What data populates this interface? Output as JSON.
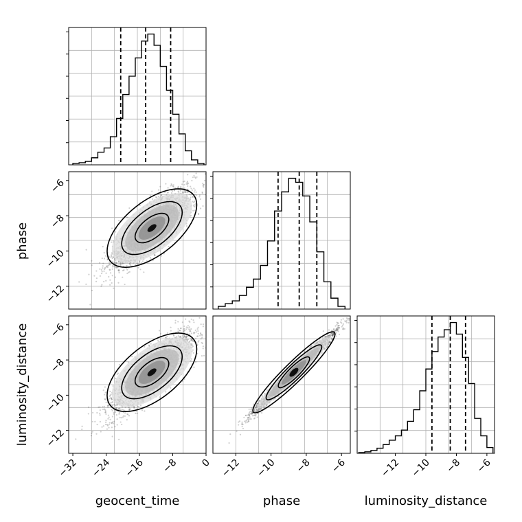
{
  "chart_data": {
    "type": "corner",
    "parameters": [
      "geocent_time",
      "phase",
      "luminosity_distance"
    ],
    "ranges": {
      "geocent_time": [
        -33,
        0
      ],
      "phase": [
        -13.3,
        -5.5
      ],
      "luminosity_distance": [
        -13.3,
        -5.5
      ],
      "hist_luminosity_distance_x": [
        -14.5,
        -5.5
      ]
    },
    "ticks": {
      "geocent_time": {
        "values": [
          -32,
          -24,
          -16,
          -8,
          0
        ],
        "labels": [
          "−32",
          "−24",
          "−16",
          "−8",
          "0"
        ]
      },
      "phase": {
        "values": [
          -12,
          -10,
          -8,
          -6
        ],
        "labels": [
          "−12",
          "−10",
          "−8",
          "−6"
        ]
      },
      "luminosity_distance": {
        "values": [
          -12,
          -10,
          -8,
          -6
        ],
        "labels": [
          "−12",
          "−10",
          "−8",
          "−6"
        ]
      }
    },
    "marginals": [
      {
        "name": "geocent_time",
        "quantiles": [
          -20.5,
          -14.5,
          -8.5
        ],
        "bin_edges": [
          -32,
          -30.5,
          -29,
          -27.5,
          -26,
          -24.5,
          -23,
          -21.5,
          -20,
          -18.5,
          -17,
          -15.5,
          -14,
          -12.5,
          -11,
          -9.5,
          -8,
          -6.5,
          -5,
          -3.5,
          -2,
          -0.5
        ],
        "counts": [
          0.01,
          0.015,
          0.025,
          0.05,
          0.09,
          0.12,
          0.2,
          0.33,
          0.5,
          0.63,
          0.76,
          0.88,
          0.93,
          0.85,
          0.7,
          0.53,
          0.36,
          0.22,
          0.1,
          0.035,
          0.01
        ]
      },
      {
        "name": "phase",
        "quantiles": [
          -9.6,
          -8.4,
          -7.4
        ],
        "bin_edges": [
          -13,
          -12.6,
          -12.2,
          -11.8,
          -11.4,
          -11,
          -10.6,
          -10.2,
          -9.8,
          -9.4,
          -9,
          -8.6,
          -8.2,
          -7.8,
          -7.4,
          -7,
          -6.6,
          -6.2,
          -5.8
        ],
        "counts": [
          0.02,
          0.04,
          0.06,
          0.1,
          0.16,
          0.22,
          0.32,
          0.5,
          0.72,
          0.86,
          0.96,
          0.93,
          0.83,
          0.64,
          0.42,
          0.2,
          0.08,
          0.02
        ]
      },
      {
        "name": "luminosity_distance",
        "quantiles": [
          -9.6,
          -8.4,
          -7.4
        ],
        "bin_edges": [
          -14.4,
          -14,
          -13.6,
          -13.2,
          -12.8,
          -12.4,
          -12,
          -11.6,
          -11.2,
          -10.8,
          -10.4,
          -10,
          -9.6,
          -9.2,
          -8.8,
          -8.4,
          -8,
          -7.6,
          -7.2,
          -6.8,
          -6.4,
          -6,
          -5.6
        ],
        "counts": [
          0.005,
          0.01,
          0.02,
          0.035,
          0.06,
          0.09,
          0.12,
          0.16,
          0.22,
          0.3,
          0.43,
          0.58,
          0.7,
          0.8,
          0.85,
          0.9,
          0.82,
          0.66,
          0.48,
          0.24,
          0.12,
          0.04
        ]
      }
    ],
    "joint": [
      {
        "x": "geocent_time",
        "y": "phase",
        "mean": [
          -13,
          -8.7
        ],
        "sd": [
          5,
          1.15
        ],
        "corr": 0.82
      },
      {
        "x": "geocent_time",
        "y": "luminosity_distance",
        "mean": [
          -13,
          -8.7
        ],
        "sd": [
          5,
          1.15
        ],
        "corr": 0.82
      },
      {
        "x": "phase",
        "y": "luminosity_distance",
        "mean": [
          -8.7,
          -8.7
        ],
        "sd": [
          1.15,
          1.15
        ],
        "corr": 0.985
      }
    ]
  }
}
